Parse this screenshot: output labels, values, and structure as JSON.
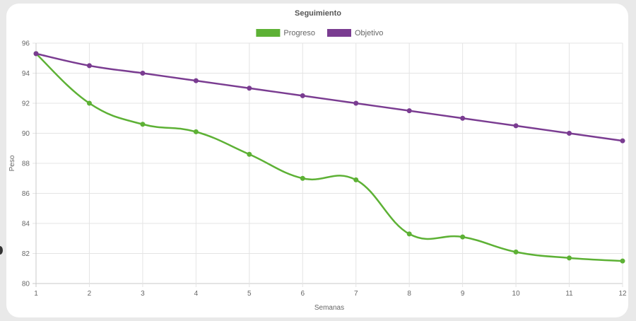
{
  "chart_data": {
    "type": "line",
    "title": "Seguimiento",
    "xlabel": "Semanas",
    "ylabel": "Peso",
    "x": [
      1,
      2,
      3,
      4,
      5,
      6,
      7,
      8,
      9,
      10,
      11,
      12
    ],
    "ylim": [
      80,
      96
    ],
    "yticks": [
      80,
      82,
      84,
      86,
      88,
      90,
      92,
      94,
      96
    ],
    "grid": true,
    "legend_position": "top",
    "series": [
      {
        "name": "Progreso",
        "color": "#5db135",
        "values": [
          95.3,
          92.0,
          90.6,
          90.1,
          88.6,
          87.0,
          86.9,
          83.3,
          83.1,
          82.1,
          81.7,
          81.5
        ]
      },
      {
        "name": "Objetivo",
        "color": "#7a3c91",
        "values": [
          95.3,
          94.5,
          94.0,
          93.5,
          93.0,
          92.5,
          92.0,
          91.5,
          91.0,
          90.5,
          90.0,
          89.5
        ]
      }
    ]
  }
}
